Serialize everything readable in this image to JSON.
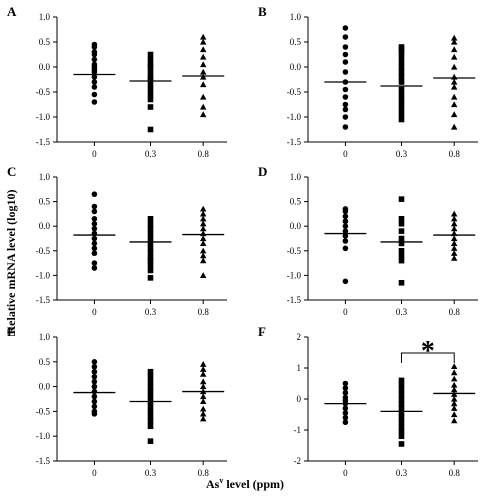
{
  "ylabel": "Relative mRNA level (log10)",
  "xlabel_main": "As",
  "xlabel_sup": "v",
  "xlabel_rest": " level (ppm)",
  "chart_data": [
    {
      "type": "scatter",
      "panel": "A",
      "categories": [
        "0",
        "0.3",
        "0.8"
      ],
      "ylim": [
        -1.5,
        1.0
      ],
      "yticks": [
        "1.0",
        "0.5",
        "0.0",
        "-0.5",
        "-1.0",
        "-1.5"
      ],
      "ytick_values": [
        1.0,
        0.5,
        0.0,
        -0.5,
        -1.0,
        -1.5
      ],
      "grid": false,
      "series": [
        {
          "marker": "circle",
          "values": [
            0.45,
            0.4,
            0.3,
            0.25,
            0.15,
            0.05,
            0.0,
            -0.05,
            -0.1,
            -0.2,
            -0.3,
            -0.4,
            -0.55,
            -0.7
          ],
          "mean": -0.15
        },
        {
          "marker": "square",
          "values": [
            0.25,
            0.15,
            0.05,
            0.0,
            -0.1,
            -0.2,
            -0.25,
            -0.35,
            -0.45,
            -0.55,
            -0.65,
            -0.8,
            -1.25
          ],
          "mean": -0.28
        },
        {
          "marker": "triangle",
          "values": [
            0.6,
            0.5,
            0.35,
            0.2,
            0.05,
            -0.1,
            -0.2,
            -0.35,
            -0.6,
            -0.8,
            -0.95
          ],
          "mean": -0.18
        }
      ]
    },
    {
      "type": "scatter",
      "panel": "B",
      "categories": [
        "0",
        "0.3",
        "0.8"
      ],
      "ylim": [
        -1.5,
        1.0
      ],
      "yticks": [
        "1.0",
        "0.5",
        "0.0",
        "-0.5",
        "-1.0",
        "-1.5"
      ],
      "ytick_values": [
        1.0,
        0.5,
        0.0,
        -0.5,
        -1.0,
        -1.5
      ],
      "grid": false,
      "series": [
        {
          "marker": "circle",
          "values": [
            0.78,
            0.6,
            0.4,
            0.25,
            0.1,
            -0.1,
            -0.3,
            -0.45,
            -0.6,
            -0.75,
            -0.85,
            -1.0,
            -1.2
          ],
          "mean": -0.3
        },
        {
          "marker": "square",
          "values": [
            0.4,
            0.35,
            0.3,
            0.2,
            0.1,
            0.0,
            -0.1,
            -0.2,
            -0.3,
            -0.45,
            -0.55,
            -0.65,
            -0.75,
            -0.85,
            -0.95,
            -1.05
          ],
          "mean": -0.38
        },
        {
          "marker": "triangle",
          "values": [
            0.58,
            0.5,
            0.35,
            0.2,
            0.0,
            -0.2,
            -0.3,
            -0.4,
            -0.6,
            -0.75,
            -0.95,
            -1.2
          ],
          "mean": -0.22
        }
      ]
    },
    {
      "type": "scatter",
      "panel": "C",
      "categories": [
        "0",
        "0.3",
        "0.8"
      ],
      "ylim": [
        -1.5,
        1.0
      ],
      "yticks": [
        "1.0",
        "0.5",
        "0.0",
        "-0.5",
        "-1.0",
        "-1.5"
      ],
      "ytick_values": [
        1.0,
        0.5,
        0.0,
        -0.5,
        -1.0,
        -1.5
      ],
      "grid": false,
      "series": [
        {
          "marker": "circle",
          "values": [
            0.65,
            0.4,
            0.3,
            0.15,
            0.05,
            -0.05,
            -0.15,
            -0.25,
            -0.35,
            -0.45,
            -0.55,
            -0.75,
            -0.85
          ],
          "mean": -0.18
        },
        {
          "marker": "square",
          "values": [
            0.15,
            0.05,
            -0.05,
            -0.15,
            -0.25,
            -0.35,
            -0.45,
            -0.55,
            -0.65,
            -0.7,
            -0.8,
            -0.9,
            -1.05
          ],
          "mean": -0.32
        },
        {
          "marker": "triangle",
          "values": [
            0.35,
            0.25,
            0.15,
            0.05,
            -0.05,
            -0.15,
            -0.25,
            -0.35,
            -0.5,
            -0.6,
            -0.7,
            -1.0
          ],
          "mean": -0.17
        }
      ]
    },
    {
      "type": "scatter",
      "panel": "D",
      "categories": [
        "0",
        "0.3",
        "0.8"
      ],
      "ylim": [
        -1.5,
        1.0
      ],
      "yticks": [
        "1.0",
        "0.5",
        "0.0",
        "-0.5",
        "-1.0",
        "-1.5"
      ],
      "ytick_values": [
        1.0,
        0.5,
        0.0,
        -0.5,
        -1.0,
        -1.5
      ],
      "grid": false,
      "series": [
        {
          "marker": "circle",
          "values": [
            0.35,
            0.3,
            0.2,
            0.1,
            0.0,
            -0.1,
            -0.2,
            -0.3,
            -0.45,
            -1.12
          ],
          "mean": -0.15
        },
        {
          "marker": "square",
          "values": [
            0.55,
            0.15,
            0.05,
            -0.1,
            -0.25,
            -0.35,
            -0.5,
            -0.6,
            -0.7,
            -1.15
          ],
          "mean": -0.32
        },
        {
          "marker": "triangle",
          "values": [
            0.25,
            0.15,
            0.05,
            -0.05,
            -0.15,
            -0.25,
            -0.35,
            -0.45,
            -0.55,
            -0.65
          ],
          "mean": -0.18
        }
      ]
    },
    {
      "type": "scatter",
      "panel": "E",
      "categories": [
        "0",
        "0.3",
        "0.8"
      ],
      "ylim": [
        -1.5,
        1.0
      ],
      "yticks": [
        "1.0",
        "0.5",
        "0.0",
        "-0.5",
        "-1.0",
        "-1.5"
      ],
      "ytick_values": [
        1.0,
        0.5,
        0.0,
        -0.5,
        -1.0,
        -1.5
      ],
      "grid": false,
      "series": [
        {
          "marker": "circle",
          "values": [
            0.5,
            0.4,
            0.3,
            0.2,
            0.1,
            0.0,
            -0.1,
            -0.2,
            -0.3,
            -0.4,
            -0.5,
            -0.55
          ],
          "mean": -0.12
        },
        {
          "marker": "square",
          "values": [
            0.3,
            0.2,
            0.1,
            0.0,
            -0.1,
            -0.2,
            -0.3,
            -0.4,
            -0.5,
            -0.6,
            -0.7,
            -0.8,
            -1.1
          ],
          "mean": -0.3
        },
        {
          "marker": "triangle",
          "values": [
            0.45,
            0.35,
            0.25,
            0.1,
            0.0,
            -0.1,
            -0.2,
            -0.3,
            -0.45,
            -0.55,
            -0.65
          ],
          "mean": -0.1
        }
      ]
    },
    {
      "type": "scatter",
      "panel": "F",
      "categories": [
        "0",
        "0.3",
        "0.8"
      ],
      "ylim": [
        -2,
        2
      ],
      "yticks": [
        "2",
        "1",
        "0",
        "-1",
        "-2"
      ],
      "ytick_values": [
        2,
        1,
        0,
        -1,
        -2
      ],
      "grid": false,
      "significance": {
        "from": "0.3",
        "to": "0.8",
        "label": "*"
      },
      "series": [
        {
          "marker": "circle",
          "values": [
            0.5,
            0.35,
            0.2,
            0.05,
            -0.05,
            -0.15,
            -0.3,
            -0.45,
            -0.6,
            -0.75
          ],
          "mean": -0.15
        },
        {
          "marker": "square",
          "values": [
            0.6,
            0.45,
            0.3,
            0.15,
            0.0,
            -0.15,
            -0.3,
            -0.45,
            -0.6,
            -0.75,
            -0.9,
            -1.05,
            -1.2,
            -1.45
          ],
          "mean": -0.4
        },
        {
          "marker": "triangle",
          "values": [
            1.05,
            0.85,
            0.65,
            0.45,
            0.3,
            0.15,
            0.0,
            -0.15,
            -0.3,
            -0.5,
            -0.7
          ],
          "mean": 0.18
        }
      ]
    }
  ]
}
